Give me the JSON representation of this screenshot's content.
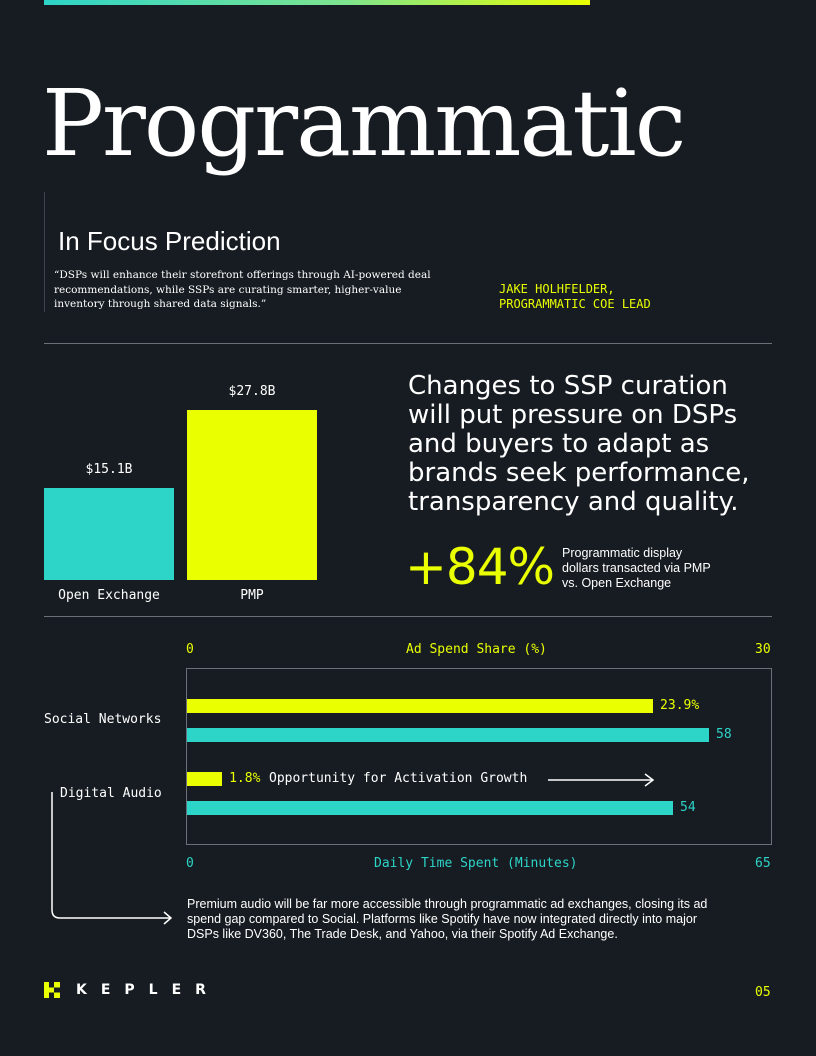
{
  "header": {
    "title": "Programmatic",
    "focus_title": "In Focus Prediction",
    "quote": "“DSPs will enhance their storefront offerings through AI-powered deal recommendations, while SSPs are curating smarter, higher-value inventory through shared data signals.”",
    "author_name": "JAKE HOLHFELDER,",
    "author_role": "PROGRAMMATIC COE LEAD"
  },
  "insight": {
    "headline": "Changes to SSP curation will put pressure on DSPs and buyers to adapt as brands seek performance, transparency and quality.",
    "stat": "+84%",
    "stat_desc": "Programmatic display dollars transacted via PMP vs. Open Exchange"
  },
  "colors": {
    "background": "#161c22",
    "teal": "#2dd4c8",
    "yellow": "#eaff00",
    "rule": "#6a7178"
  },
  "chart_data": [
    {
      "type": "bar",
      "title": "",
      "categories": [
        "Open Exchange",
        "PMP"
      ],
      "values": [
        15.1,
        27.8
      ],
      "value_labels": [
        "$15.1B",
        "$27.8B"
      ],
      "units": "USD billions",
      "colors": [
        "#2dd4c8",
        "#eaff00"
      ],
      "ylim": [
        0,
        30
      ]
    },
    {
      "type": "bar",
      "orientation": "horizontal",
      "categories": [
        "Social Networks",
        "Digital Audio"
      ],
      "top_axis": {
        "label": "Ad Spend Share (%)",
        "min_label": "0",
        "max_label": "30",
        "range": [
          0,
          30
        ]
      },
      "bottom_axis": {
        "label": "Daily Time Spent (Minutes)",
        "min_label": "0",
        "max_label": "65",
        "range": [
          0,
          65
        ]
      },
      "series": [
        {
          "name": "Ad Spend Share (%)",
          "axis": "top",
          "color": "#eaff00",
          "values": [
            23.9,
            1.8
          ],
          "labels": [
            "23.9%",
            "1.8%"
          ]
        },
        {
          "name": "Daily Time Spent (Minutes)",
          "axis": "bottom",
          "color": "#2dd4c8",
          "values": [
            58,
            54
          ],
          "labels": [
            "58",
            "54"
          ]
        }
      ],
      "annotation": "Opportunity for Activation Growth"
    }
  ],
  "footnote": "Premium audio will be far more accessible through programmatic ad exchanges, closing its ad spend gap compared to Social. Platforms like Spotify have now integrated directly into major DSPs like DV360, The Trade Desk, and Yahoo, via their Spotify Ad Exchange.",
  "footer": {
    "brand": "KEPLER",
    "page": "05"
  }
}
